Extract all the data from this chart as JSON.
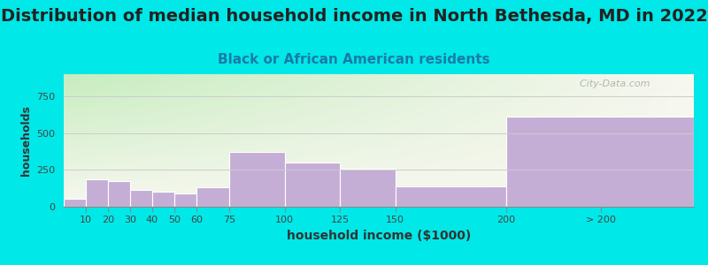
{
  "title": "Distribution of median household income in North Bethesda, MD in 2022",
  "subtitle": "Black or African American residents",
  "xlabel": "household income ($1000)",
  "ylabel": "households",
  "bar_labels": [
    "10",
    "20",
    "30",
    "40",
    "50",
    "60",
    "75",
    "100",
    "125",
    "150",
    "200",
    "> 200"
  ],
  "bar_heights": [
    55,
    185,
    175,
    115,
    105,
    90,
    130,
    375,
    300,
    260,
    140,
    610
  ],
  "bar_left_edges": [
    0,
    10,
    20,
    30,
    40,
    50,
    60,
    75,
    100,
    125,
    150,
    200
  ],
  "bar_right_edges": [
    10,
    20,
    30,
    40,
    50,
    60,
    75,
    100,
    125,
    150,
    200,
    285
  ],
  "tick_positions": [
    10,
    20,
    30,
    40,
    50,
    60,
    75,
    100,
    125,
    150,
    200,
    243
  ],
  "tick_labels": [
    "10",
    "20",
    "30",
    "40",
    "50",
    "60",
    "75",
    "100",
    "125",
    "150",
    "200",
    "> 200"
  ],
  "bar_color": "#c5aed6",
  "bar_edgecolor": "#ffffff",
  "ylim": [
    0,
    900
  ],
  "yticks": [
    0,
    250,
    500,
    750
  ],
  "bg_color_top_left": "#c8eec0",
  "bg_color_top_right": "#f0f8e8",
  "bg_color_bottom": "#f8f8f0",
  "outer_background": "#00e8e8",
  "title_fontsize": 14,
  "subtitle_fontsize": 11,
  "subtitle_color": "#1a7aaa",
  "title_color": "#222222",
  "watermark": "  City-Data.com",
  "grid_color": "#cccccc",
  "xlim": [
    0,
    285
  ]
}
